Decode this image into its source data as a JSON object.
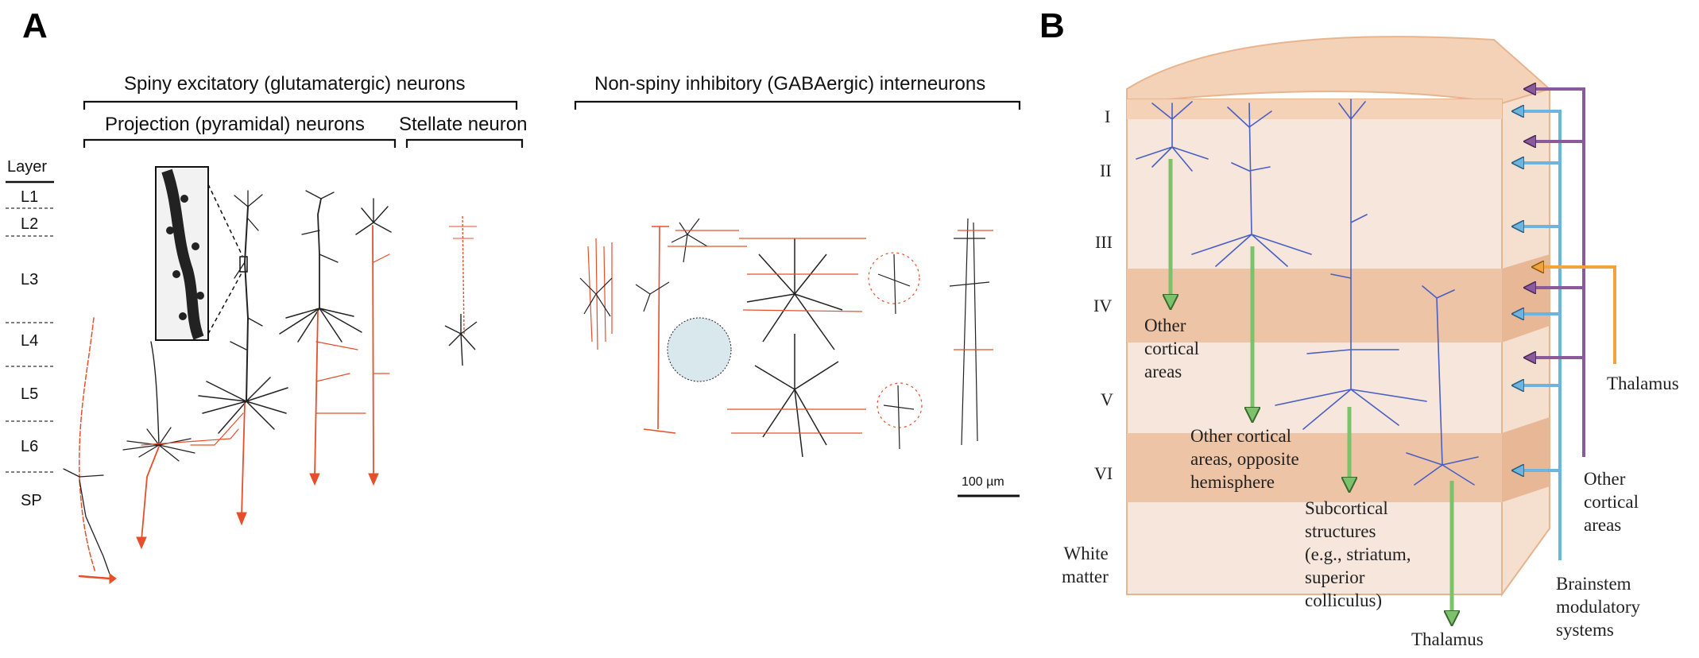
{
  "panel_a": {
    "label": "A",
    "header_excitatory": "Spiny excitatory (glutamatergic) neurons",
    "header_projection": "Projection (pyramidal) neurons",
    "header_stellate": "Stellate neuron",
    "header_inhibitory": "Non-spiny inhibitory (GABAergic) interneurons",
    "layer_title": "Layer",
    "layers": [
      "L1",
      "L2",
      "L3",
      "L4",
      "L5",
      "L6",
      "SP"
    ],
    "scale_bar": "100 µm"
  },
  "panel_b": {
    "label": "B",
    "layers": [
      "I",
      "II",
      "III",
      "IV",
      "V",
      "VI"
    ],
    "white_matter": "White\nmatter",
    "outputs": {
      "other_cortical": "Other\ncortical\nareas",
      "opposite_hemisphere": "Other cortical\nareas, opposite\nhemisphere",
      "subcortical": "Subcortical\nstructures\n(e.g., striatum,\nsuperior\ncolliculus)",
      "thalamus_out": "Thalamus"
    },
    "inputs": {
      "thalamus_in": "Thalamus",
      "other_cortical_in": "Other\ncortical\nareas",
      "brainstem": "Brainstem\nmodulatory\nsystems"
    },
    "colors": {
      "block_light": "#f7e6dc",
      "block_dark": "#edc4a6",
      "block_edge": "#e8b48e",
      "neuron_blue": "#4a5fc4",
      "arrow_green": "#7cc26a",
      "arrow_blue": "#6cb5e0",
      "arrow_purple": "#8a5a9c",
      "arrow_orange": "#f2a33a",
      "axon_red": "#e5502a"
    }
  }
}
